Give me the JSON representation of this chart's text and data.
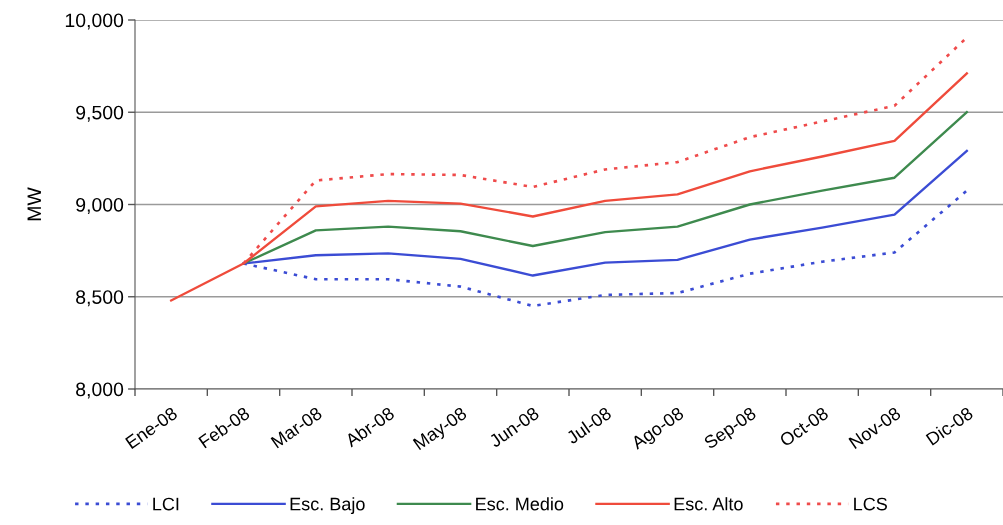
{
  "chart_data": {
    "type": "line",
    "ylabel": "MW",
    "categories": [
      "Ene-08",
      "Feb-08",
      "Mar-08",
      "Abr-08",
      "May-08",
      "Jun-08",
      "Jul-08",
      "Ago-08",
      "Sep-08",
      "Oct-08",
      "Nov-08",
      "Dic-08"
    ],
    "series": [
      {
        "name": "LCI",
        "color": "#3b4cd4",
        "line_style": "dotted",
        "values": [
          null,
          8680,
          8595,
          8595,
          8555,
          8450,
          8510,
          8520,
          8625,
          8690,
          8740,
          9075
        ]
      },
      {
        "name": "Esc. Bajo",
        "color": "#3b4cd4",
        "line_style": "solid",
        "values": [
          null,
          8680,
          8725,
          8735,
          8705,
          8615,
          8685,
          8700,
          8810,
          8875,
          8945,
          9290
        ]
      },
      {
        "name": "Esc. Medio",
        "color": "#3e8a4e",
        "line_style": "solid",
        "values": [
          null,
          8680,
          8860,
          8880,
          8855,
          8775,
          8850,
          8880,
          9000,
          9075,
          9145,
          9500
        ]
      },
      {
        "name": "Esc. Alto",
        "color": "#ef4b3b",
        "line_style": "solid",
        "values": [
          8480,
          8680,
          8990,
          9020,
          9005,
          8935,
          9020,
          9055,
          9180,
          9260,
          9345,
          9710
        ]
      },
      {
        "name": "LCS",
        "color": "#ef4b4b",
        "line_style": "dotted",
        "values": [
          null,
          8680,
          9130,
          9165,
          9160,
          9095,
          9190,
          9230,
          9365,
          9450,
          9535,
          9905
        ]
      }
    ],
    "ylim": [
      8000,
      10000
    ],
    "yticks": [
      {
        "value": 8000,
        "label": "8,000"
      },
      {
        "value": 8500,
        "label": "8,500"
      },
      {
        "value": 9000,
        "label": "9,000"
      },
      {
        "value": 9500,
        "label": "9,500"
      },
      {
        "value": 10000,
        "label": "10,000"
      }
    ],
    "grid": "y",
    "legend": "bottom"
  }
}
